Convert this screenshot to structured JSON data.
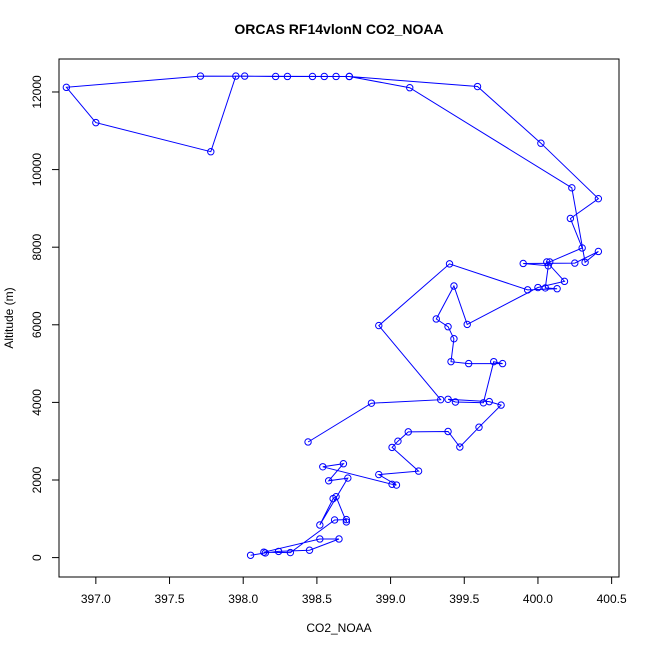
{
  "chart_data": {
    "type": "line",
    "title": "ORCAS RF14vlonN CO2_NOAA",
    "xlabel": "CO2_NOAA",
    "ylabel": "Altitude (m)",
    "xlim": [
      396.75,
      400.55
    ],
    "ylim": [
      -500,
      12850
    ],
    "x_ticks": [
      397.0,
      397.5,
      398.0,
      398.5,
      399.0,
      399.5,
      400.0,
      400.5
    ],
    "x_tick_labels": [
      "397.0",
      "397.5",
      "398.0",
      "398.5",
      "399.0",
      "399.5",
      "400.0",
      "400.5"
    ],
    "y_ticks": [
      0,
      2000,
      4000,
      6000,
      8000,
      10000,
      12000
    ],
    "y_tick_labels": [
      "0",
      "2000",
      "4000",
      "6000",
      "8000",
      "10000",
      "12000"
    ],
    "grid": false,
    "legend": "none",
    "color": "#0000ff",
    "marker": "open-circle",
    "series": [
      {
        "x": [
          398.05,
          398.15,
          398.24,
          398.45,
          398.65,
          398.52,
          398.14,
          398.32,
          398.62,
          398.7,
          398.7,
          398.63,
          398.61,
          398.52,
          398.71,
          398.58,
          398.68,
          398.54,
          399.01,
          399.04,
          398.92,
          399.19,
          399.01,
          399.05,
          399.12,
          399.39,
          399.47,
          399.6,
          399.75,
          399.67,
          399.39,
          399.44,
          399.63,
          399.7,
          399.76,
          399.53,
          399.41,
          399.43,
          399.39,
          399.31,
          399.43,
          399.52,
          400.0,
          400.18,
          400.06,
          400.08,
          400.3,
          400.22,
          400.41,
          400.02,
          399.59,
          398.72,
          397.71,
          396.8,
          397.0,
          397.78,
          397.95,
          398.01,
          398.22,
          398.3,
          398.47,
          398.63,
          398.55,
          398.72,
          399.13,
          400.23,
          400.32,
          400.41,
          400.25,
          399.9,
          400.07,
          400.05,
          400.13,
          399.93,
          399.4,
          398.92,
          399.34,
          398.87,
          398.44
        ],
        "y": [
          60,
          120,
          160,
          190,
          480,
          480,
          140,
          130,
          970,
          980,
          920,
          1570,
          1520,
          840,
          2050,
          1980,
          2420,
          2340,
          1890,
          1870,
          2140,
          2230,
          2840,
          3000,
          3240,
          3250,
          2850,
          3360,
          3930,
          4020,
          4080,
          4010,
          3990,
          5050,
          5000,
          5000,
          5050,
          5640,
          5950,
          6150,
          7000,
          6010,
          6960,
          7120,
          7620,
          7620,
          7980,
          8740,
          9250,
          10680,
          12140,
          12400,
          12410,
          12120,
          11210,
          10460,
          12410,
          12410,
          12400,
          12400,
          12400,
          12400,
          12400,
          12400,
          12110,
          9530,
          7610,
          7890,
          7590,
          7580,
          7520,
          6950,
          6930,
          6900,
          7570,
          5980,
          4070,
          3980,
          2980
        ]
      }
    ]
  }
}
